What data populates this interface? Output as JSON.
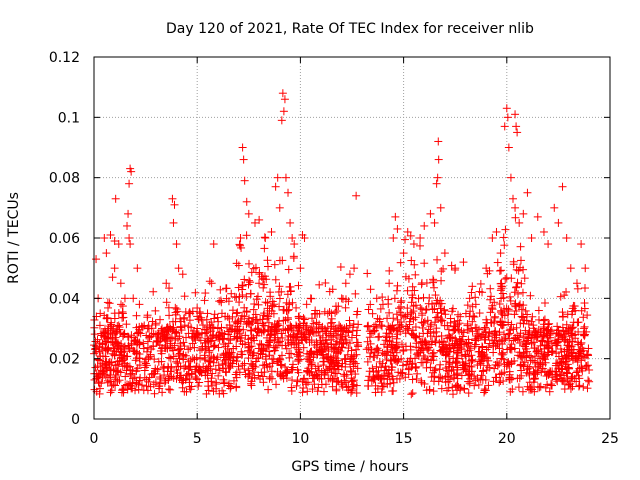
{
  "chart_data": {
    "type": "scatter",
    "title": "Day 120 of 2021, Rate Of TEC Index for receiver nlib",
    "xlabel": "GPS time / hours",
    "ylabel": "ROTI / TECUs",
    "xlim": [
      0,
      25
    ],
    "ylim": [
      0,
      0.12
    ],
    "x_ticks": [
      "0",
      "5",
      "10",
      "15",
      "20",
      "25"
    ],
    "y_ticks": [
      "0",
      "0.02",
      "0.04",
      "0.06",
      "0.08",
      "0.1",
      "0.12"
    ],
    "grid": true,
    "marker": "+",
    "color": "#ff0000",
    "data_gap_hours": [
      12.8,
      13.2
    ],
    "series": [
      {
        "points": [
          [
            0.1,
            0.053
          ],
          [
            0.2,
            0.04
          ],
          [
            0.3,
            0.035
          ],
          [
            0.5,
            0.06
          ],
          [
            0.6,
            0.055
          ],
          [
            0.8,
            0.061
          ],
          [
            0.9,
            0.047
          ],
          [
            1.0,
            0.05
          ],
          [
            1.0,
            0.059
          ],
          [
            1.05,
            0.073
          ],
          [
            1.2,
            0.058
          ],
          [
            1.3,
            0.045
          ],
          [
            1.4,
            0.035
          ],
          [
            1.5,
            0.04
          ],
          [
            1.6,
            0.064
          ],
          [
            1.65,
            0.068
          ],
          [
            1.7,
            0.078
          ],
          [
            1.75,
            0.083
          ],
          [
            1.8,
            0.082
          ],
          [
            1.7,
            0.06
          ],
          [
            1.75,
            0.058
          ],
          [
            1.9,
            0.04
          ],
          [
            2.1,
            0.05
          ],
          [
            2.2,
            0.038
          ],
          [
            2.6,
            0.03
          ],
          [
            3.0,
            0.028
          ],
          [
            3.5,
            0.045
          ],
          [
            3.8,
            0.073
          ],
          [
            3.9,
            0.071
          ],
          [
            3.85,
            0.065
          ],
          [
            4.0,
            0.058
          ],
          [
            4.1,
            0.05
          ],
          [
            4.3,
            0.048
          ],
          [
            4.6,
            0.035
          ],
          [
            5.0,
            0.03
          ],
          [
            5.5,
            0.035
          ],
          [
            5.7,
            0.045
          ],
          [
            5.8,
            0.058
          ],
          [
            6.0,
            0.03
          ],
          [
            6.5,
            0.028
          ],
          [
            6.9,
            0.035
          ],
          [
            7.1,
            0.06
          ],
          [
            7.2,
            0.09
          ],
          [
            7.25,
            0.086
          ],
          [
            7.3,
            0.079
          ],
          [
            7.4,
            0.072
          ],
          [
            7.5,
            0.068
          ],
          [
            7.8,
            0.065
          ],
          [
            8.0,
            0.066
          ],
          [
            8.3,
            0.06
          ],
          [
            8.6,
            0.062
          ],
          [
            8.8,
            0.077
          ],
          [
            8.9,
            0.08
          ],
          [
            9.0,
            0.07
          ],
          [
            9.1,
            0.099
          ],
          [
            9.15,
            0.108
          ],
          [
            9.2,
            0.102
          ],
          [
            9.25,
            0.106
          ],
          [
            9.3,
            0.08
          ],
          [
            9.4,
            0.075
          ],
          [
            9.5,
            0.065
          ],
          [
            9.6,
            0.06
          ],
          [
            9.7,
            0.058
          ],
          [
            10.0,
            0.05
          ],
          [
            10.1,
            0.061
          ],
          [
            10.2,
            0.06
          ],
          [
            10.5,
            0.04
          ],
          [
            11.0,
            0.03
          ],
          [
            11.5,
            0.035
          ],
          [
            12.0,
            0.04
          ],
          [
            12.2,
            0.045
          ],
          [
            12.4,
            0.048
          ],
          [
            12.6,
            0.05
          ],
          [
            12.7,
            0.074
          ],
          [
            13.4,
            0.043
          ],
          [
            13.7,
            0.04
          ],
          [
            14.0,
            0.038
          ],
          [
            14.3,
            0.045
          ],
          [
            14.5,
            0.06
          ],
          [
            14.6,
            0.067
          ],
          [
            14.7,
            0.063
          ],
          [
            15.0,
            0.055
          ],
          [
            15.2,
            0.062
          ],
          [
            15.5,
            0.058
          ],
          [
            15.8,
            0.06
          ],
          [
            16.0,
            0.064
          ],
          [
            16.3,
            0.068
          ],
          [
            16.5,
            0.065
          ],
          [
            16.6,
            0.078
          ],
          [
            16.65,
            0.08
          ],
          [
            16.7,
            0.086
          ],
          [
            16.68,
            0.092
          ],
          [
            16.8,
            0.07
          ],
          [
            17.0,
            0.055
          ],
          [
            17.5,
            0.05
          ],
          [
            17.9,
            0.052
          ],
          [
            18.2,
            0.04
          ],
          [
            18.5,
            0.038
          ],
          [
            18.8,
            0.042
          ],
          [
            19.0,
            0.05
          ],
          [
            19.3,
            0.06
          ],
          [
            19.5,
            0.062
          ],
          [
            19.7,
            0.055
          ],
          [
            19.9,
            0.097
          ],
          [
            20.0,
            0.103
          ],
          [
            20.05,
            0.1
          ],
          [
            20.1,
            0.09
          ],
          [
            20.2,
            0.08
          ],
          [
            20.4,
            0.101
          ],
          [
            20.45,
            0.097
          ],
          [
            20.5,
            0.095
          ],
          [
            20.3,
            0.073
          ],
          [
            20.4,
            0.07
          ],
          [
            20.6,
            0.065
          ],
          [
            20.8,
            0.068
          ],
          [
            21.0,
            0.075
          ],
          [
            21.2,
            0.06
          ],
          [
            21.5,
            0.067
          ],
          [
            21.8,
            0.062
          ],
          [
            22.0,
            0.058
          ],
          [
            22.3,
            0.07
          ],
          [
            22.5,
            0.065
          ],
          [
            22.7,
            0.077
          ],
          [
            22.9,
            0.06
          ],
          [
            23.1,
            0.05
          ],
          [
            23.4,
            0.045
          ],
          [
            23.6,
            0.058
          ],
          [
            23.8,
            0.05
          ]
        ]
      }
    ]
  }
}
